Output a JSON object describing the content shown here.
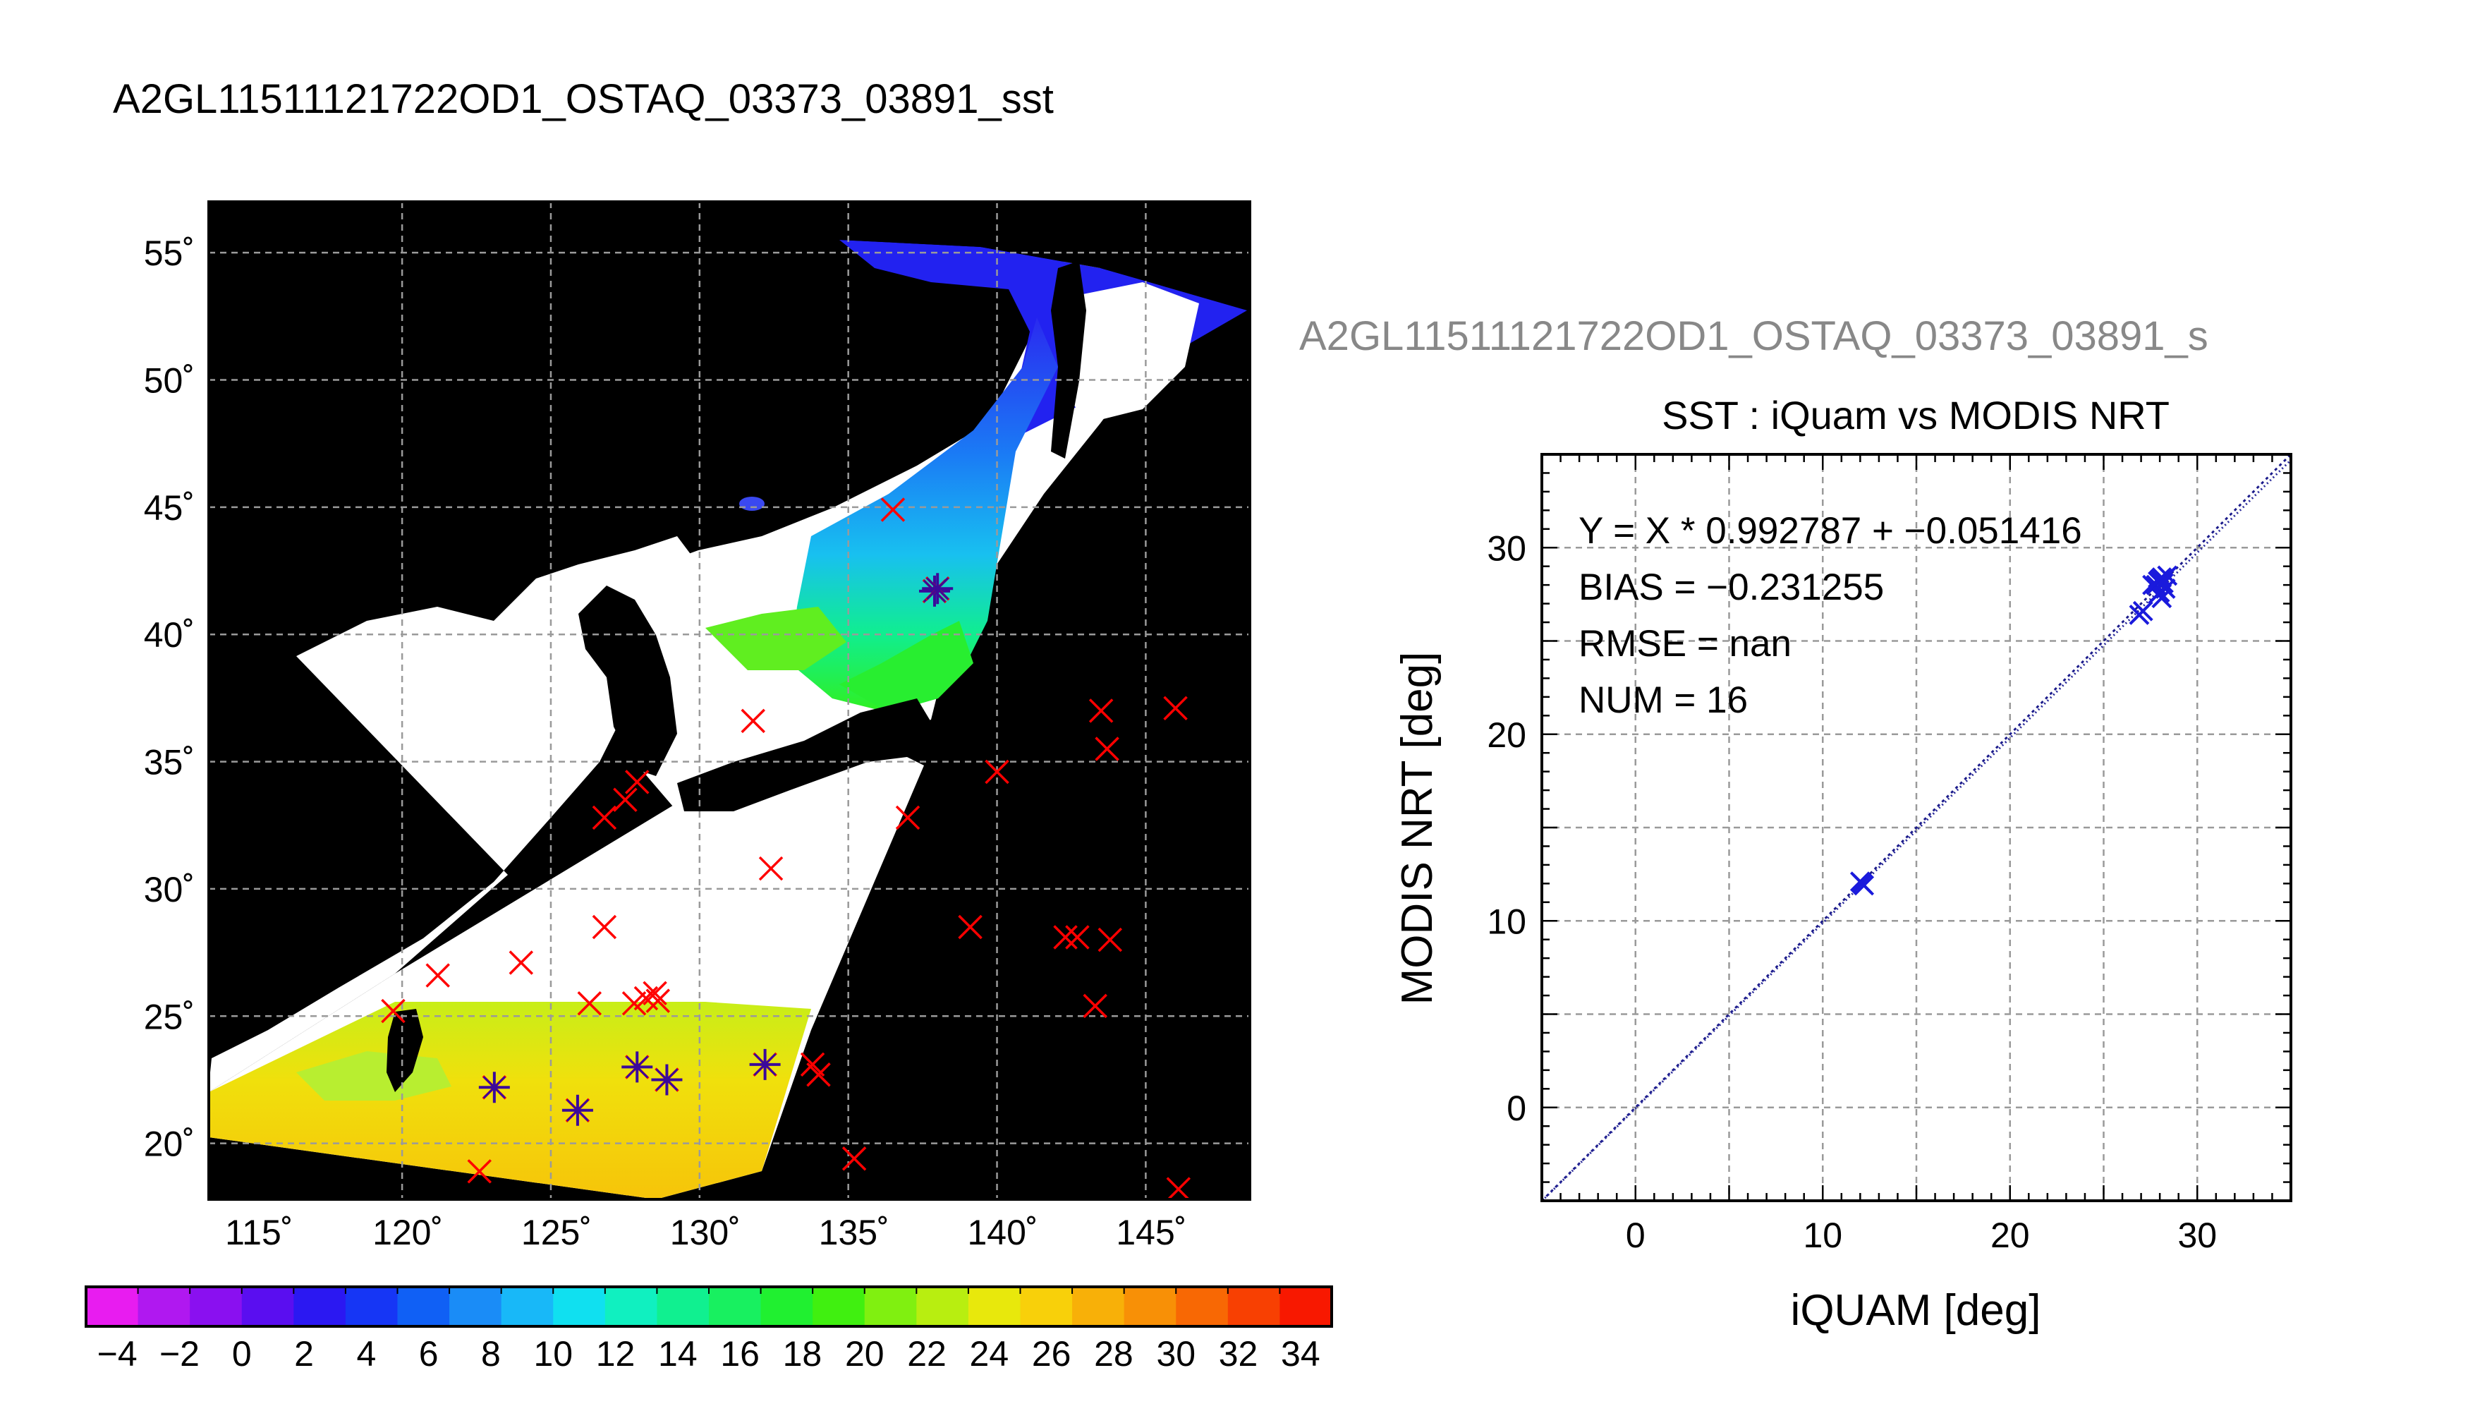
{
  "figure_title": "A2GL11511121722OD1_OSTAQ_03373_03891_sst",
  "map": {
    "lat_ticks": [
      "55˚",
      "50˚",
      "45˚",
      "40˚",
      "35˚",
      "30˚",
      "25˚",
      "20˚"
    ],
    "lon_ticks": [
      "115˚",
      "120˚",
      "125˚",
      "130˚",
      "135˚",
      "140˚",
      "145˚"
    ],
    "lat_values": [
      55,
      50,
      45,
      40,
      35,
      30,
      25,
      20
    ],
    "lon_values": [
      115,
      120,
      125,
      130,
      135,
      140,
      145
    ],
    "lon_range": [
      113.5,
      148.5
    ],
    "lat_range": [
      17.8,
      57.0
    ],
    "background_color": "#000000",
    "land_color": "#ffffff",
    "marker_color_x": "#ff0000",
    "marker_color_star": "#3a0a9a",
    "x_markers": [
      [
        136.5,
        44.9
      ],
      [
        131.8,
        36.6
      ],
      [
        127.9,
        34.2
      ],
      [
        127.5,
        33.5
      ],
      [
        126.8,
        32.8
      ],
      [
        132.4,
        30.8
      ],
      [
        137.0,
        32.8
      ],
      [
        140.0,
        34.6
      ],
      [
        143.5,
        37.0
      ],
      [
        146.0,
        37.1
      ],
      [
        143.7,
        35.5
      ],
      [
        126.8,
        28.5
      ],
      [
        124.0,
        27.1
      ],
      [
        121.2,
        26.6
      ],
      [
        119.7,
        25.2
      ],
      [
        126.3,
        25.5
      ],
      [
        127.8,
        25.5
      ],
      [
        128.2,
        25.7
      ],
      [
        128.5,
        25.9
      ],
      [
        128.6,
        25.6
      ],
      [
        139.1,
        28.5
      ],
      [
        142.3,
        28.1
      ],
      [
        142.7,
        28.1
      ],
      [
        143.8,
        28.0
      ],
      [
        143.3,
        25.4
      ],
      [
        133.8,
        23.1
      ],
      [
        134.0,
        22.7
      ],
      [
        135.2,
        19.4
      ],
      [
        146.1,
        18.2
      ],
      [
        122.6,
        18.9
      ]
    ],
    "star_markers": [
      [
        137.9,
        41.7
      ],
      [
        138.0,
        41.8
      ],
      [
        123.1,
        22.2
      ],
      [
        125.9,
        21.3
      ],
      [
        127.9,
        23.0
      ],
      [
        128.9,
        22.5
      ],
      [
        132.2,
        23.1
      ]
    ]
  },
  "colorbar": {
    "tick_labels": [
      "−4",
      "−2",
      "0",
      "2",
      "4",
      "6",
      "8",
      "10",
      "12",
      "14",
      "16",
      "18",
      "20",
      "22",
      "24",
      "26",
      "28",
      "30",
      "32",
      "34"
    ],
    "min": -5,
    "max": 35,
    "colors": [
      "#e81cf0",
      "#b018f0",
      "#8a10f0",
      "#5a0ef0",
      "#2b18f2",
      "#1636f5",
      "#1060f5",
      "#1a8cf7",
      "#18b8f8",
      "#10e0f0",
      "#10f0c0",
      "#10f090",
      "#18f060",
      "#20f030",
      "#40f010",
      "#80f010",
      "#b8ee10",
      "#e8e80c",
      "#f8d00a",
      "#f8b008",
      "#f89006",
      "#f86804",
      "#f84002",
      "#f81800"
    ]
  },
  "chart_data": {
    "type": "scatter",
    "subtitle": "A2GL11511121722OD1_OSTAQ_03373_03891_s",
    "title": "SST : iQuam vs MODIS NRT",
    "xlabel": "iQUAM [deg]",
    "ylabel": "MODIS NRT [deg]",
    "xlim": [
      -5,
      35
    ],
    "ylim": [
      -5,
      35
    ],
    "x_ticks": [
      "0",
      "10",
      "20",
      "30"
    ],
    "y_ticks": [
      "0",
      "10",
      "20",
      "30"
    ],
    "x_tick_values": [
      0,
      10,
      20,
      30
    ],
    "y_tick_values": [
      0,
      10,
      20,
      30
    ],
    "grid": true,
    "marker_color": "#1a1adc",
    "fit_line_color": "#1a1a8a",
    "fit": {
      "slope": 0.992787,
      "intercept": -0.051416
    },
    "stats": [
      "Y = X * 0.992787 + −0.051416",
      "BIAS = −0.231255",
      "RMSE = nan",
      "NUM = 16"
    ],
    "points": [
      [
        12.0,
        12.1
      ],
      [
        12.2,
        11.9
      ],
      [
        12.1,
        12.0
      ],
      [
        26.9,
        26.4
      ],
      [
        27.1,
        26.6
      ],
      [
        27.8,
        28.0
      ],
      [
        28.0,
        28.3
      ],
      [
        27.9,
        27.5
      ],
      [
        28.1,
        27.3
      ],
      [
        28.0,
        27.6
      ],
      [
        28.2,
        28.1
      ],
      [
        28.4,
        28.5
      ],
      [
        27.6,
        28.0
      ],
      [
        28.3,
        27.8
      ],
      [
        27.9,
        28.2
      ],
      [
        28.1,
        28.4
      ]
    ]
  }
}
